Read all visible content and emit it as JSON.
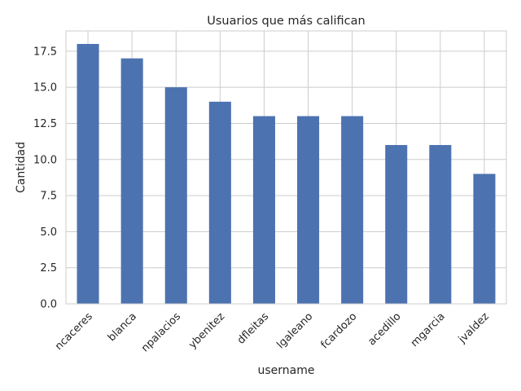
{
  "chart_data": {
    "type": "bar",
    "title": "Usuarios que más califican",
    "xlabel": "username",
    "ylabel": "Cantidad",
    "categories": [
      "ncaceres",
      "blanca",
      "npalacios",
      "ybenitez",
      "dfleitas",
      "lgaleano",
      "fcardozo",
      "acedillo",
      "mgarcia",
      "jvaldez"
    ],
    "values": [
      18,
      17,
      15,
      14,
      13,
      13,
      13,
      11,
      11,
      9
    ],
    "ylim": [
      0,
      18.9
    ],
    "yticks": [
      0.0,
      2.5,
      5.0,
      7.5,
      10.0,
      12.5,
      15.0,
      17.5
    ],
    "ytick_labels": [
      "0.0",
      "2.5",
      "5.0",
      "7.5",
      "10.0",
      "12.5",
      "15.0",
      "17.5"
    ],
    "grid": true,
    "bar_color": "#4c72b0",
    "grid_color": "#cccccc"
  }
}
